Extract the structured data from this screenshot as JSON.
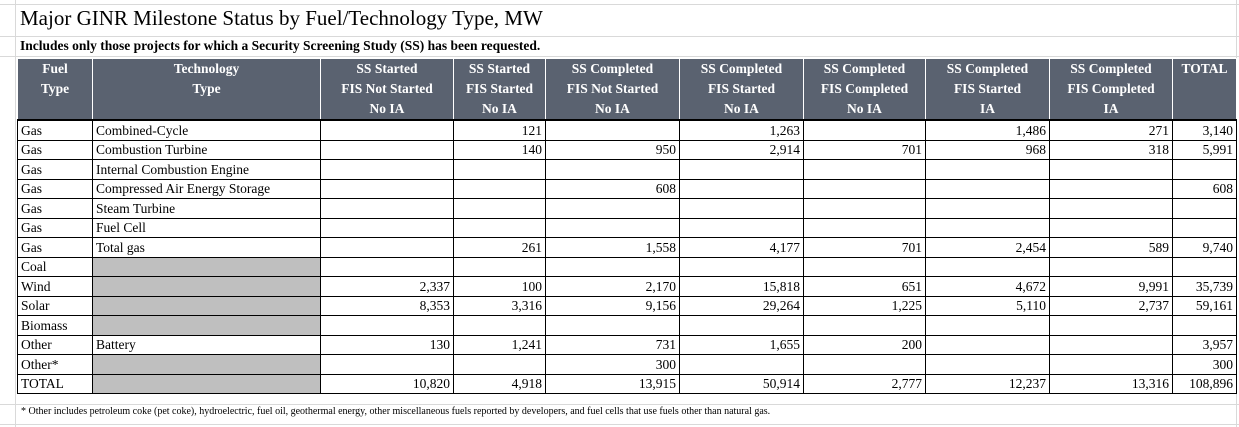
{
  "title": "Major GINR Milestone Status by Fuel/Technology Type, MW",
  "subtitle": "Includes only those projects for which a Security Screening Study (SS) has been requested.",
  "headers": [
    {
      "lines": [
        "Fuel",
        "Type"
      ]
    },
    {
      "lines": [
        "Technology",
        "Type"
      ]
    },
    {
      "lines": [
        "SS Started",
        "FIS Not Started",
        "No IA"
      ]
    },
    {
      "lines": [
        "SS Started",
        "FIS Started",
        "No IA"
      ]
    },
    {
      "lines": [
        "SS Completed",
        "FIS Not Started",
        "No IA"
      ]
    },
    {
      "lines": [
        "SS Completed",
        "FIS Started",
        "No IA"
      ]
    },
    {
      "lines": [
        "SS Completed",
        "FIS Completed",
        "No IA"
      ]
    },
    {
      "lines": [
        "SS Completed",
        "FIS Started",
        "IA"
      ]
    },
    {
      "lines": [
        "SS Completed",
        "FIS Completed",
        "IA"
      ]
    },
    {
      "lines": [
        "TOTAL"
      ]
    }
  ],
  "rows": [
    {
      "fuel": "Gas",
      "tech": "Combined-Cycle",
      "shade": false,
      "values": [
        "",
        "121",
        "",
        "1,263",
        "",
        "1,486",
        "271",
        "3,140"
      ]
    },
    {
      "fuel": "Gas",
      "tech": "Combustion Turbine",
      "shade": false,
      "values": [
        "",
        "140",
        "950",
        "2,914",
        "701",
        "968",
        "318",
        "5,991"
      ]
    },
    {
      "fuel": "Gas",
      "tech": "Internal Combustion Engine",
      "shade": false,
      "values": [
        "",
        "",
        "",
        "",
        "",
        "",
        "",
        ""
      ]
    },
    {
      "fuel": "Gas",
      "tech": "Compressed Air Energy Storage",
      "shade": false,
      "values": [
        "",
        "",
        "608",
        "",
        "",
        "",
        "",
        "608"
      ]
    },
    {
      "fuel": "Gas",
      "tech": "Steam Turbine",
      "shade": false,
      "values": [
        "",
        "",
        "",
        "",
        "",
        "",
        "",
        ""
      ]
    },
    {
      "fuel": "Gas",
      "tech": "Fuel Cell",
      "shade": false,
      "values": [
        "",
        "",
        "",
        "",
        "",
        "",
        "",
        ""
      ]
    },
    {
      "fuel": "Gas",
      "tech": "Total gas",
      "shade": false,
      "values": [
        "",
        "261",
        "1,558",
        "4,177",
        "701",
        "2,454",
        "589",
        "9,740"
      ]
    },
    {
      "fuel": "Coal",
      "tech": "",
      "shade": true,
      "values": [
        "",
        "",
        "",
        "",
        "",
        "",
        "",
        ""
      ]
    },
    {
      "fuel": "Wind",
      "tech": "",
      "shade": true,
      "values": [
        "2,337",
        "100",
        "2,170",
        "15,818",
        "651",
        "4,672",
        "9,991",
        "35,739"
      ]
    },
    {
      "fuel": "Solar",
      "tech": "",
      "shade": true,
      "values": [
        "8,353",
        "3,316",
        "9,156",
        "29,264",
        "1,225",
        "5,110",
        "2,737",
        "59,161"
      ]
    },
    {
      "fuel": "Biomass",
      "tech": "",
      "shade": true,
      "values": [
        "",
        "",
        "",
        "",
        "",
        "",
        "",
        ""
      ]
    },
    {
      "fuel": "Other",
      "tech": "Battery",
      "shade": false,
      "values": [
        "130",
        "1,241",
        "731",
        "1,655",
        "200",
        "",
        "",
        "3,957"
      ]
    },
    {
      "fuel": "Other*",
      "tech": "",
      "shade": true,
      "values": [
        "",
        "",
        "300",
        "",
        "",
        "",
        "",
        "300"
      ]
    },
    {
      "fuel": "TOTAL",
      "tech": "",
      "shade": true,
      "values": [
        "10,820",
        "4,918",
        "13,915",
        "50,914",
        "2,777",
        "12,237",
        "13,316",
        "108,896"
      ]
    }
  ],
  "footnote": "* Other includes petroleum coke (pet coke), hydroelectric, fuel oil, geothermal energy, other miscellaneous fuels reported by developers, and fuel cells that use fuels other than natural gas."
}
